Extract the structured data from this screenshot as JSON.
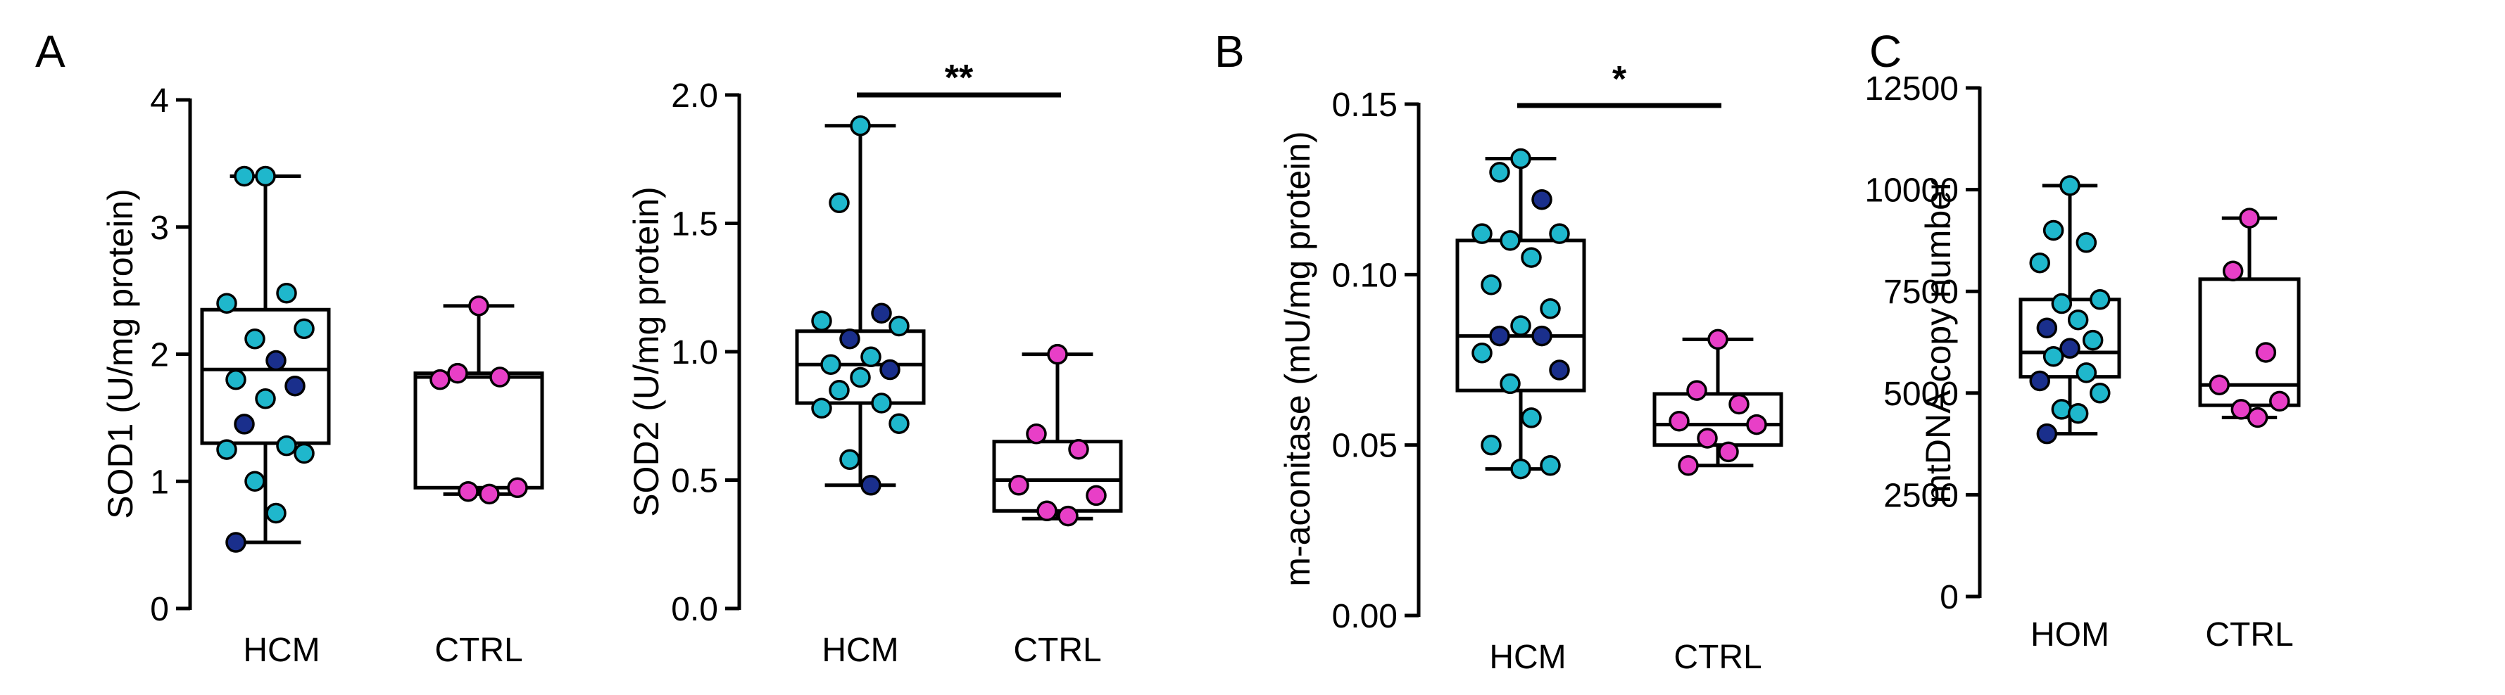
{
  "colors": {
    "hcm_light": "#1FB7CC",
    "hcm_dark": "#1A2F8C",
    "ctrl": "#E83FC7",
    "line": "#000000",
    "fill": "#FFFFFF"
  },
  "chart_data": [
    {
      "type": "box",
      "panel_label": "A",
      "ylabel": "SOD1  (U/mg protein)",
      "ylim": [
        0,
        4
      ],
      "ticks": [
        0,
        1,
        2,
        3,
        4
      ],
      "tick_labels": [
        "0",
        "1",
        "2",
        "3",
        "4"
      ],
      "categories": [
        "HCM",
        "CTRL"
      ],
      "significance": "",
      "boxes": [
        {
          "min": 0.52,
          "q1": 1.3,
          "median": 1.88,
          "q3": 2.35,
          "max": 3.4
        },
        {
          "min": 0.9,
          "q1": 0.95,
          "median": 1.82,
          "q3": 1.85,
          "max": 2.38
        }
      ],
      "points": [
        [
          [
            3.4,
            "l"
          ],
          [
            3.4,
            "l"
          ],
          [
            2.48,
            "l"
          ],
          [
            2.4,
            "l"
          ],
          [
            2.2,
            "l"
          ],
          [
            2.12,
            "l"
          ],
          [
            1.95,
            "d"
          ],
          [
            1.8,
            "l"
          ],
          [
            1.75,
            "d"
          ],
          [
            1.65,
            "l"
          ],
          [
            1.45,
            "d"
          ],
          [
            1.28,
            "l"
          ],
          [
            1.25,
            "l"
          ],
          [
            1.22,
            "l"
          ],
          [
            1.0,
            "l"
          ],
          [
            0.75,
            "l"
          ],
          [
            0.52,
            "d"
          ]
        ],
        [
          [
            2.38,
            "p"
          ],
          [
            1.85,
            "p"
          ],
          [
            1.82,
            "p"
          ],
          [
            1.8,
            "p"
          ],
          [
            0.95,
            "p"
          ],
          [
            0.92,
            "p"
          ],
          [
            0.9,
            "p"
          ]
        ]
      ]
    },
    {
      "type": "box",
      "panel_label": "",
      "ylabel": "SOD2  (U/mg protein)",
      "ylim": [
        0,
        2.0
      ],
      "ticks": [
        0,
        0.5,
        1.0,
        1.5,
        2.0
      ],
      "tick_labels": [
        "0.0",
        "0.5",
        "1.0",
        "1.5",
        "2.0"
      ],
      "categories": [
        "HCM",
        "CTRL"
      ],
      "significance": "**",
      "boxes": [
        {
          "min": 0.48,
          "q1": 0.8,
          "median": 0.95,
          "q3": 1.08,
          "max": 1.88
        },
        {
          "min": 0.35,
          "q1": 0.38,
          "median": 0.5,
          "q3": 0.65,
          "max": 0.99
        }
      ],
      "points": [
        [
          [
            1.88,
            "l"
          ],
          [
            1.58,
            "l"
          ],
          [
            1.15,
            "d"
          ],
          [
            1.12,
            "l"
          ],
          [
            1.1,
            "l"
          ],
          [
            1.05,
            "d"
          ],
          [
            0.98,
            "l"
          ],
          [
            0.95,
            "l"
          ],
          [
            0.93,
            "d"
          ],
          [
            0.9,
            "l"
          ],
          [
            0.85,
            "l"
          ],
          [
            0.8,
            "l"
          ],
          [
            0.78,
            "l"
          ],
          [
            0.72,
            "l"
          ],
          [
            0.58,
            "l"
          ],
          [
            0.48,
            "d"
          ]
        ],
        [
          [
            0.99,
            "p"
          ],
          [
            0.68,
            "p"
          ],
          [
            0.62,
            "p"
          ],
          [
            0.48,
            "p"
          ],
          [
            0.44,
            "p"
          ],
          [
            0.38,
            "p"
          ],
          [
            0.36,
            "p"
          ]
        ]
      ]
    },
    {
      "type": "box",
      "panel_label": "B",
      "ylabel": "m-aconitase  (mU/mg protein)",
      "ylim": [
        0,
        0.15
      ],
      "ticks": [
        0,
        0.05,
        0.1,
        0.15
      ],
      "tick_labels": [
        "0.00",
        "0.05",
        "0.10",
        "0.15"
      ],
      "categories": [
        "HCM",
        "CTRL"
      ],
      "significance": "*",
      "boxes": [
        {
          "min": 0.043,
          "q1": 0.066,
          "median": 0.082,
          "q3": 0.11,
          "max": 0.134
        },
        {
          "min": 0.044,
          "q1": 0.05,
          "median": 0.056,
          "q3": 0.065,
          "max": 0.081
        }
      ],
      "points": [
        [
          [
            0.134,
            "l"
          ],
          [
            0.13,
            "l"
          ],
          [
            0.122,
            "d"
          ],
          [
            0.112,
            "l"
          ],
          [
            0.112,
            "l"
          ],
          [
            0.11,
            "l"
          ],
          [
            0.105,
            "l"
          ],
          [
            0.097,
            "l"
          ],
          [
            0.09,
            "l"
          ],
          [
            0.085,
            "l"
          ],
          [
            0.082,
            "d"
          ],
          [
            0.082,
            "d"
          ],
          [
            0.077,
            "l"
          ],
          [
            0.072,
            "d"
          ],
          [
            0.068,
            "l"
          ],
          [
            0.058,
            "l"
          ],
          [
            0.05,
            "l"
          ],
          [
            0.044,
            "l"
          ],
          [
            0.043,
            "l"
          ]
        ],
        [
          [
            0.081,
            "p"
          ],
          [
            0.066,
            "p"
          ],
          [
            0.062,
            "p"
          ],
          [
            0.057,
            "p"
          ],
          [
            0.056,
            "p"
          ],
          [
            0.052,
            "p"
          ],
          [
            0.048,
            "p"
          ],
          [
            0.044,
            "p"
          ]
        ]
      ]
    },
    {
      "type": "box",
      "panel_label": "C",
      "ylabel": "mtDNA copy number",
      "ylim": [
        0,
        12500
      ],
      "ticks": [
        0,
        2500,
        5000,
        7500,
        10000,
        12500
      ],
      "tick_labels": [
        "0",
        "2500",
        "5000",
        "7500",
        "10000",
        "12500"
      ],
      "categories": [
        "HOM",
        "CTRL"
      ],
      "significance": "",
      "boxes": [
        {
          "min": 4000,
          "q1": 5400,
          "median": 6000,
          "q3": 7300,
          "max": 10100
        },
        {
          "min": 4400,
          "q1": 4700,
          "median": 5200,
          "q3": 7800,
          "max": 9300
        }
      ],
      "points": [
        [
          [
            10100,
            "l"
          ],
          [
            9000,
            "l"
          ],
          [
            8700,
            "l"
          ],
          [
            8200,
            "l"
          ],
          [
            7300,
            "l"
          ],
          [
            7200,
            "l"
          ],
          [
            6800,
            "l"
          ],
          [
            6600,
            "d"
          ],
          [
            6300,
            "l"
          ],
          [
            6100,
            "d"
          ],
          [
            5900,
            "l"
          ],
          [
            5500,
            "l"
          ],
          [
            5300,
            "d"
          ],
          [
            5000,
            "l"
          ],
          [
            4600,
            "l"
          ],
          [
            4500,
            "l"
          ],
          [
            4000,
            "d"
          ]
        ],
        [
          [
            9300,
            "p"
          ],
          [
            8000,
            "p"
          ],
          [
            6000,
            "p"
          ],
          [
            5200,
            "p"
          ],
          [
            4800,
            "p"
          ],
          [
            4600,
            "p"
          ],
          [
            4400,
            "p"
          ]
        ]
      ]
    }
  ]
}
